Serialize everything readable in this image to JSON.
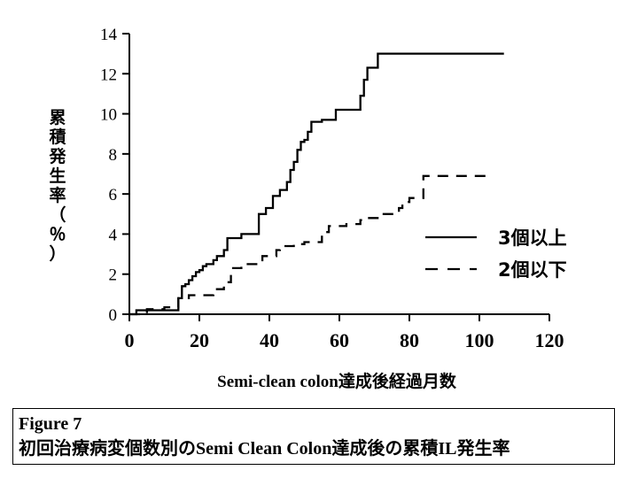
{
  "chart_data": {
    "type": "line",
    "ylabel": "累積発生率（％）",
    "xlabel": "Semi-clean colon達成後経過月数",
    "xlim": [
      0,
      120
    ],
    "ylim": [
      0,
      14
    ],
    "xticks": [
      0,
      20,
      40,
      60,
      80,
      100,
      120
    ],
    "yticks": [
      0,
      2,
      4,
      6,
      8,
      10,
      12,
      14
    ],
    "grid": false,
    "legend_position": "right",
    "series": [
      {
        "name": "3個以上",
        "style": "solid",
        "x": [
          0,
          2,
          2,
          14,
          14,
          15,
          15,
          16,
          16,
          17,
          17,
          18,
          18,
          19,
          19,
          20,
          20,
          21,
          21,
          22,
          22,
          24,
          24,
          25,
          25,
          27,
          27,
          28,
          28,
          32,
          32,
          37,
          37,
          39,
          39,
          41,
          41,
          43,
          43,
          45,
          45,
          46,
          46,
          47,
          47,
          48,
          48,
          49,
          49,
          50,
          50,
          51,
          51,
          52,
          52,
          55,
          55,
          59,
          59,
          66,
          66,
          67,
          67,
          68,
          68,
          71,
          71,
          80,
          80,
          107
        ],
        "y": [
          0,
          0,
          0.2,
          0.2,
          0.8,
          0.8,
          1.4,
          1.4,
          1.5,
          1.5,
          1.7,
          1.7,
          1.9,
          1.9,
          2.1,
          2.1,
          2.2,
          2.2,
          2.4,
          2.4,
          2.5,
          2.5,
          2.7,
          2.7,
          2.9,
          2.9,
          3.2,
          3.2,
          3.8,
          3.8,
          4.0,
          4.0,
          5.0,
          5.0,
          5.3,
          5.3,
          5.9,
          5.9,
          6.2,
          6.2,
          6.6,
          6.6,
          7.2,
          7.2,
          7.6,
          7.6,
          8.2,
          8.2,
          8.6,
          8.6,
          8.7,
          8.7,
          9.1,
          9.1,
          9.6,
          9.6,
          9.7,
          9.7,
          10.2,
          10.2,
          10.9,
          10.9,
          11.7,
          11.7,
          12.3,
          12.3,
          13.0,
          13.0,
          13.0,
          13.0
        ]
      },
      {
        "name": "2個以下",
        "style": "dashed",
        "x": [
          0,
          5,
          5,
          10,
          10,
          14,
          14,
          17,
          17,
          24,
          24,
          27,
          27,
          29,
          29,
          32,
          32,
          38,
          38,
          42,
          42,
          43,
          43,
          44,
          44,
          47,
          47,
          50,
          50,
          55,
          55,
          57,
          57,
          62,
          62,
          66,
          66,
          67,
          67,
          72,
          72,
          77,
          77,
          78,
          78,
          80,
          80,
          84,
          84,
          85,
          85,
          104
        ],
        "y": [
          0,
          0,
          0.25,
          0.25,
          0.35,
          0.35,
          0.8,
          0.8,
          0.95,
          0.95,
          1.25,
          1.25,
          1.6,
          1.6,
          2.3,
          2.3,
          2.5,
          2.5,
          2.9,
          2.9,
          3.2,
          3.2,
          3.3,
          3.3,
          3.4,
          3.4,
          3.5,
          3.5,
          3.6,
          3.6,
          4.1,
          4.1,
          4.4,
          4.4,
          4.5,
          4.5,
          4.7,
          4.7,
          4.8,
          4.8,
          5.0,
          5.0,
          5.3,
          5.3,
          5.6,
          5.6,
          5.8,
          5.8,
          6.9,
          6.9,
          6.9,
          6.9
        ]
      }
    ]
  },
  "caption": {
    "line1": "Figure 7",
    "line2": "初回治療病変個数別のSemi Clean Colon達成後の累積IL発生率"
  }
}
